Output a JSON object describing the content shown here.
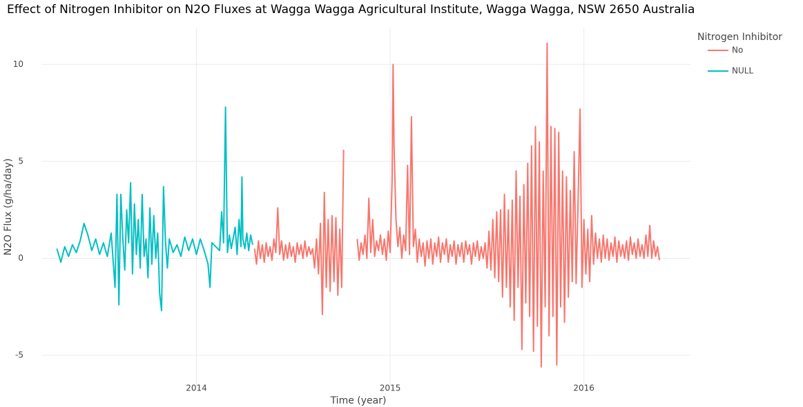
{
  "chart_data": {
    "type": "line",
    "title": "Effect of Nitrogen Inhibitor on N2O Fluxes at Wagga Wagga Agricultural Institute, Wagga Wagga, NSW 2650 Australia",
    "x_label": "Time (year)",
    "y_label": "N2O Flux (g/ha/day)",
    "legend_title": "Nitrogen Inhibitor",
    "legend_position": "top-right",
    "grid": true,
    "xlim": [
      2013.2,
      2016.55
    ],
    "xticks": [
      2014,
      2015,
      2016
    ],
    "ylim": [
      -6.6,
      11.9
    ],
    "yticks": [
      -5,
      0,
      5,
      10
    ],
    "series": [
      {
        "name": "No",
        "color": "#f8766d",
        "x": [
          2014.3,
          2014.31,
          2014.32,
          2014.33,
          2014.34,
          2014.35,
          2014.36,
          2014.37,
          2014.38,
          2014.39,
          2014.4,
          2014.41,
          2014.42,
          2014.43,
          2014.44,
          2014.45,
          2014.46,
          2014.47,
          2014.48,
          2014.49,
          2014.5,
          2014.51,
          2014.52,
          2014.53,
          2014.54,
          2014.55,
          2014.56,
          2014.57,
          2014.58,
          2014.59,
          2014.6,
          2014.61,
          2014.62,
          2014.63,
          2014.64,
          2014.65,
          2014.66,
          2014.67,
          2014.68,
          2014.69,
          2014.7,
          2014.71,
          2014.72,
          2014.73,
          2014.74,
          2014.75,
          2014.76,
          2014.8,
          2014.83,
          2014.84,
          2014.85,
          2014.86,
          2014.87,
          2014.88,
          2014.89,
          2014.9,
          2014.91,
          2014.92,
          2014.93,
          2014.94,
          2014.95,
          2014.96,
          2014.97,
          2014.98,
          2014.99,
          2015.0,
          2015.01,
          2015.015,
          2015.02,
          2015.03,
          2015.04,
          2015.05,
          2015.06,
          2015.07,
          2015.08,
          2015.09,
          2015.1,
          2015.11,
          2015.12,
          2015.13,
          2015.14,
          2015.15,
          2015.16,
          2015.17,
          2015.18,
          2015.19,
          2015.2,
          2015.21,
          2015.22,
          2015.23,
          2015.24,
          2015.25,
          2015.26,
          2015.27,
          2015.28,
          2015.29,
          2015.3,
          2015.31,
          2015.32,
          2015.33,
          2015.34,
          2015.35,
          2015.36,
          2015.37,
          2015.38,
          2015.39,
          2015.4,
          2015.41,
          2015.42,
          2015.43,
          2015.44,
          2015.45,
          2015.46,
          2015.47,
          2015.48,
          2015.49,
          2015.5,
          2015.51,
          2015.52,
          2015.53,
          2015.54,
          2015.55,
          2015.56,
          2015.57,
          2015.58,
          2015.59,
          2015.6,
          2015.61,
          2015.62,
          2015.63,
          2015.64,
          2015.65,
          2015.66,
          2015.67,
          2015.68,
          2015.69,
          2015.7,
          2015.71,
          2015.72,
          2015.73,
          2015.74,
          2015.75,
          2015.76,
          2015.77,
          2015.78,
          2015.79,
          2015.8,
          2015.81,
          2015.82,
          2015.83,
          2015.84,
          2015.85,
          2015.86,
          2015.87,
          2015.88,
          2015.89,
          2015.9,
          2015.91,
          2015.92,
          2015.93,
          2015.94,
          2015.95,
          2015.96,
          2015.97,
          2015.98,
          2015.99,
          2016.0,
          2016.01,
          2016.02,
          2016.03,
          2016.04,
          2016.05,
          2016.06,
          2016.07,
          2016.08,
          2016.09,
          2016.1,
          2016.11,
          2016.12,
          2016.13,
          2016.14,
          2016.15,
          2016.16,
          2016.17,
          2016.18,
          2016.19,
          2016.2,
          2016.21,
          2016.22,
          2016.23,
          2016.24,
          2016.25,
          2016.26,
          2016.27,
          2016.28,
          2016.29,
          2016.3,
          2016.31,
          2016.32,
          2016.33,
          2016.34,
          2016.35,
          2016.36,
          2016.37,
          2016.38,
          2016.39
        ],
        "values": [
          0.5,
          -0.3,
          0.9,
          0.0,
          0.7,
          -0.2,
          0.8,
          0.1,
          0.6,
          -0.1,
          1.0,
          0.3,
          2.6,
          0.2,
          0.9,
          -0.1,
          0.7,
          0.0,
          0.8,
          0.1,
          0.6,
          -0.2,
          0.8,
          0.2,
          0.7,
          0.0,
          0.9,
          0.1,
          0.6,
          0.2,
          0.5,
          -0.5,
          1.0,
          -0.8,
          1.8,
          -2.9,
          3.4,
          -1.5,
          2.0,
          -1.7,
          2.2,
          -1.2,
          2.1,
          -1.9,
          1.5,
          -1.5,
          5.6,
          null,
          1.0,
          -0.1,
          0.8,
          0.2,
          1.2,
          0.0,
          3.1,
          0.3,
          2.0,
          0.1,
          0.9,
          0.4,
          1.2,
          0.2,
          1.0,
          -0.1,
          1.4,
          0.3,
          4.0,
          10.0,
          5.8,
          2.0,
          0.6,
          1.6,
          0.0,
          1.2,
          0.4,
          4.8,
          0.2,
          7.3,
          0.6,
          1.5,
          -0.2,
          1.0,
          0.1,
          0.8,
          -0.4,
          0.9,
          0.0,
          1.0,
          -0.3,
          0.8,
          0.1,
          1.1,
          -0.2,
          0.8,
          0.2,
          1.0,
          -0.2,
          0.7,
          0.1,
          0.9,
          -0.3,
          0.7,
          0.1,
          0.8,
          -0.2,
          0.9,
          0.2,
          0.7,
          -0.3,
          0.8,
          0.1,
          0.9,
          -0.1,
          0.6,
          0.0,
          0.8,
          -0.5,
          1.4,
          -0.6,
          2.0,
          -1.0,
          2.4,
          -1.2,
          2.5,
          -2.0,
          3.3,
          -1.5,
          2.5,
          -2.5,
          3.0,
          -3.2,
          4.5,
          -1.5,
          3.2,
          -4.7,
          3.8,
          -2.3,
          4.9,
          -3.0,
          5.8,
          -4.8,
          6.8,
          -3.5,
          6.0,
          -5.6,
          4.5,
          -2.5,
          11.1,
          -4.0,
          6.8,
          -3.0,
          6.7,
          -5.5,
          6.5,
          -2.5,
          4.5,
          -3.3,
          4.2,
          -2.0,
          3.5,
          -1.2,
          5.5,
          -1.3,
          3.0,
          7.7,
          -1.5,
          2.0,
          -0.8,
          1.5,
          -1.2,
          2.2,
          -0.3,
          1.3,
          0.0,
          1.0,
          -0.2,
          1.2,
          0.0,
          1.0,
          -0.1,
          0.8,
          0.1,
          1.1,
          -0.2,
          0.9,
          0.1,
          0.7,
          0.0,
          0.9,
          -0.1,
          1.1,
          0.2,
          0.8,
          0.0,
          1.0,
          0.1,
          0.7,
          0.0,
          1.2,
          0.1,
          1.7,
          0.0,
          0.9,
          0.1,
          0.6,
          -0.1
        ]
      },
      {
        "name": "NULL",
        "color": "#00bfc4",
        "x": [
          2013.28,
          2013.3,
          2013.32,
          2013.34,
          2013.36,
          2013.38,
          2013.4,
          2013.42,
          2013.44,
          2013.46,
          2013.48,
          2013.5,
          2013.52,
          2013.54,
          2013.56,
          2013.58,
          2013.59,
          2013.6,
          2013.61,
          2013.62,
          2013.63,
          2013.64,
          2013.65,
          2013.66,
          2013.67,
          2013.68,
          2013.69,
          2013.7,
          2013.71,
          2013.72,
          2013.73,
          2013.74,
          2013.75,
          2013.76,
          2013.77,
          2013.78,
          2013.79,
          2013.8,
          2013.81,
          2013.82,
          2013.83,
          2013.84,
          2013.85,
          2013.86,
          2013.88,
          2013.9,
          2013.92,
          2013.94,
          2013.96,
          2013.98,
          2014.0,
          2014.02,
          2014.04,
          2014.06,
          2014.07,
          2014.08,
          2014.1,
          2014.12,
          2014.13,
          2014.14,
          2014.15,
          2014.16,
          2014.17,
          2014.18,
          2014.2,
          2014.21,
          2014.22,
          2014.23,
          2014.235,
          2014.24,
          2014.25,
          2014.26,
          2014.27,
          2014.28,
          2014.29
        ],
        "values": [
          0.5,
          -0.2,
          0.6,
          0.1,
          0.7,
          0.3,
          0.9,
          1.8,
          1.2,
          0.4,
          1.0,
          0.2,
          0.8,
          0.1,
          1.3,
          -1.5,
          3.3,
          -2.4,
          3.3,
          1.0,
          -0.6,
          2.5,
          0.8,
          3.9,
          -0.8,
          2.8,
          0.2,
          2.0,
          -0.5,
          3.3,
          0.1,
          1.0,
          -1.0,
          2.6,
          -0.3,
          2.2,
          0.0,
          1.3,
          -1.8,
          -2.7,
          3.7,
          0.9,
          -0.5,
          1.0,
          0.3,
          0.7,
          0.1,
          1.1,
          0.4,
          1.0,
          0.2,
          1.0,
          0.4,
          -0.3,
          -1.5,
          0.8,
          0.6,
          0.4,
          2.4,
          0.8,
          7.8,
          0.3,
          1.2,
          0.5,
          1.6,
          0.2,
          2.0,
          0.6,
          4.2,
          1.0,
          0.5,
          1.3,
          0.4,
          1.2,
          0.7
        ]
      }
    ]
  }
}
